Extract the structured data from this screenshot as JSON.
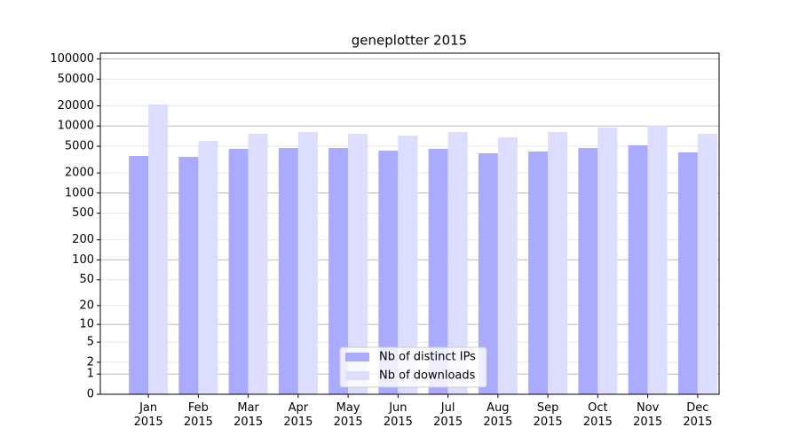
{
  "chart_data": {
    "type": "bar",
    "title": "geneplotter 2015",
    "scale": "log1p",
    "categories": [
      "Jan\n2015",
      "Feb\n2015",
      "Mar\n2015",
      "Apr\n2015",
      "May\n2015",
      "Jun\n2015",
      "Jul\n2015",
      "Aug\n2015",
      "Sep\n2015",
      "Oct\n2015",
      "Nov\n2015",
      "Dec\n2015"
    ],
    "series": [
      {
        "name": "Nb of distinct IPs",
        "color": "#aaaaff",
        "values": [
          3575,
          3470,
          4560,
          4700,
          4700,
          4290,
          4560,
          3920,
          4170,
          4700,
          5150,
          4040
        ]
      },
      {
        "name": "Nb of downloads",
        "color": "#ddddff",
        "values": [
          20900,
          6000,
          7650,
          8130,
          7650,
          7200,
          8130,
          6780,
          8130,
          9470,
          10060,
          7650
        ]
      }
    ],
    "ylim": [
      0,
      122000
    ],
    "yticks": [
      0,
      1,
      2,
      5,
      10,
      20,
      50,
      100,
      200,
      500,
      1000,
      2000,
      5000,
      10000,
      20000,
      50000,
      100000
    ],
    "grid": true,
    "legend": "lower center"
  }
}
